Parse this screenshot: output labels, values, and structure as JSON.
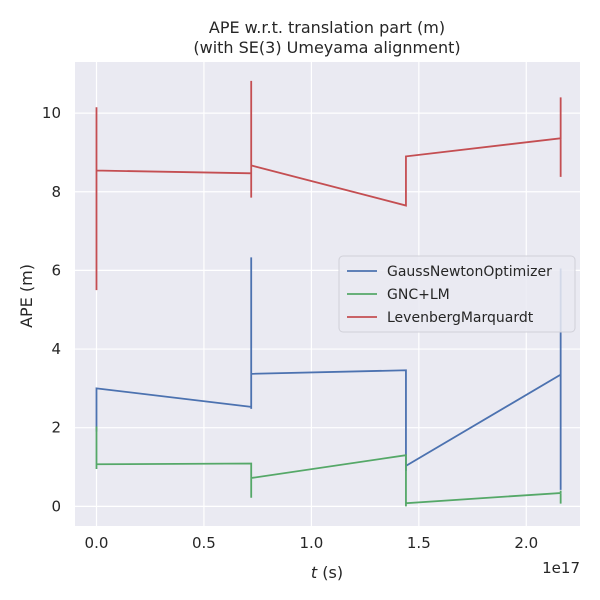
{
  "chart_data": {
    "type": "line",
    "title_line1": "APE w.r.t. translation part (m)",
    "title_line2": "(with SE(3) Umeyama alignment)",
    "xlabel_italic": "t",
    "xlabel_rest": " (s)",
    "ylabel": "APE (m)",
    "x_offset_label": "1e17",
    "x_scale": 1e+17,
    "xlim": [
      -0.1,
      2.25
    ],
    "ylim": [
      -0.5,
      11.3
    ],
    "x_ticks": [
      0.0,
      0.5,
      1.0,
      1.5,
      2.0
    ],
    "x_tick_labels": [
      "0.0",
      "0.5",
      "1.0",
      "1.5",
      "2.0"
    ],
    "y_ticks": [
      0,
      2,
      4,
      6,
      8,
      10
    ],
    "y_tick_labels": [
      "0",
      "2",
      "4",
      "6",
      "8",
      "10"
    ],
    "grid": true,
    "legend_position": "center-right",
    "background": "#eaeaf2",
    "series": [
      {
        "name": "GaussNewtonOptimizer",
        "color": "#4c72b0",
        "points": [
          [
            0.0,
            1.9
          ],
          [
            0.0,
            3.0
          ],
          [
            0.72,
            2.53
          ],
          [
            0.72,
            6.33
          ],
          [
            0.72,
            2.48
          ],
          [
            0.72,
            3.37
          ],
          [
            1.44,
            3.46
          ],
          [
            1.44,
            0.9
          ],
          [
            1.44,
            1.03
          ],
          [
            2.16,
            3.35
          ],
          [
            2.16,
            6.05
          ],
          [
            2.16,
            0.42
          ]
        ]
      },
      {
        "name": "GNC+LM",
        "color": "#55a868",
        "points": [
          [
            0.0,
            0.95
          ],
          [
            0.0,
            2.03
          ],
          [
            0.0,
            1.07
          ],
          [
            0.72,
            1.09
          ],
          [
            0.72,
            0.22
          ],
          [
            0.72,
            0.72
          ],
          [
            1.44,
            1.3
          ],
          [
            1.44,
            0.0
          ],
          [
            1.44,
            0.08
          ],
          [
            2.16,
            0.34
          ],
          [
            2.16,
            0.4
          ],
          [
            2.16,
            0.07
          ]
        ]
      },
      {
        "name": "LevenbergMarquardt",
        "color": "#c44e52",
        "points": [
          [
            0.0,
            5.5
          ],
          [
            0.0,
            10.15
          ],
          [
            0.0,
            8.54
          ],
          [
            0.72,
            8.47
          ],
          [
            0.72,
            10.82
          ],
          [
            0.72,
            7.85
          ],
          [
            0.72,
            8.67
          ],
          [
            1.44,
            7.65
          ],
          [
            1.44,
            7.65
          ],
          [
            1.44,
            8.9
          ],
          [
            2.16,
            9.36
          ],
          [
            2.16,
            10.4
          ],
          [
            2.16,
            8.38
          ]
        ]
      }
    ]
  }
}
